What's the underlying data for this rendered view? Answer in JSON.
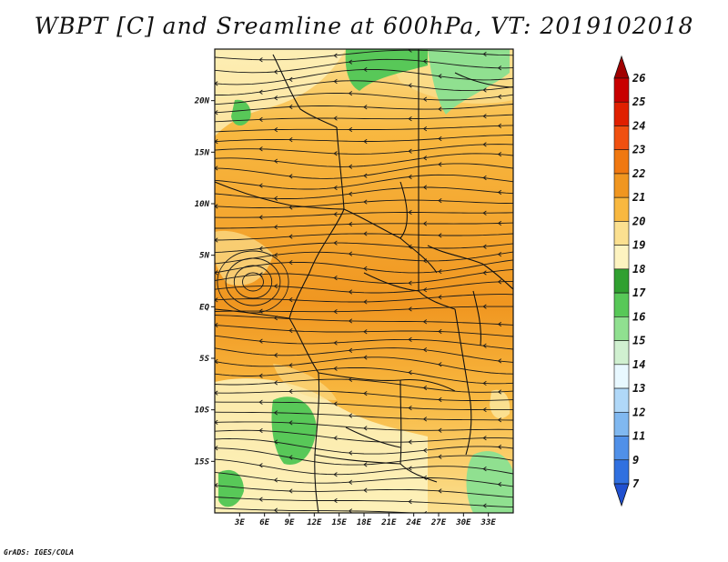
{
  "title": "WBPT [C] and Sreamline at 600hPa, VT: 2019102018",
  "credit": "GrADS: IGES/COLA",
  "map": {
    "field": "WBPT [C]",
    "level": "600hPa",
    "valid_time": "2019102018",
    "lat_range": [
      -20,
      25
    ],
    "lon_range": [
      0,
      36
    ],
    "lat_ticks": [
      {
        "value": 20,
        "label": "20N"
      },
      {
        "value": 15,
        "label": "15N"
      },
      {
        "value": 10,
        "label": "10N"
      },
      {
        "value": 5,
        "label": "5N"
      },
      {
        "value": 0,
        "label": "EQ"
      },
      {
        "value": -5,
        "label": "5S"
      },
      {
        "value": -10,
        "label": "10S"
      },
      {
        "value": -15,
        "label": "15S"
      }
    ],
    "lon_ticks": [
      {
        "value": 3,
        "label": "3E"
      },
      {
        "value": 6,
        "label": "6E"
      },
      {
        "value": 9,
        "label": "9E"
      },
      {
        "value": 12,
        "label": "12E"
      },
      {
        "value": 15,
        "label": "15E"
      },
      {
        "value": 18,
        "label": "18E"
      },
      {
        "value": 21,
        "label": "21E"
      },
      {
        "value": 24,
        "label": "24E"
      },
      {
        "value": 27,
        "label": "27E"
      },
      {
        "value": 30,
        "label": "30E"
      },
      {
        "value": 33,
        "label": "33E"
      }
    ]
  },
  "colorbar": {
    "labels": [
      "26",
      "25",
      "24",
      "23",
      "22",
      "21",
      "20",
      "19",
      "18",
      "17",
      "16",
      "15",
      "14",
      "13",
      "12",
      "11",
      "9",
      "7"
    ],
    "colors": [
      "#a00000",
      "#c80000",
      "#e02000",
      "#f05010",
      "#f07810",
      "#f09620",
      "#f8b840",
      "#fbe090",
      "#fdf3c0",
      "#30a030",
      "#58c858",
      "#90e090",
      "#d0f0d0",
      "#e8f8ff",
      "#b0d8f8",
      "#80b8f0",
      "#5090e8",
      "#3070e0",
      "#2050d0"
    ]
  },
  "palette": {
    "warm_dark": "#f09620",
    "warm_mid": "#f8b840",
    "warm_light": "#fbe090",
    "pale": "#fdf3c0",
    "green": "#58c858",
    "green_light": "#90e090",
    "streamline": "#1a1a1a"
  }
}
